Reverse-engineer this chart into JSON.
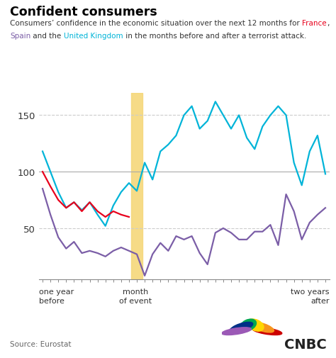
{
  "title": "Confident consumers",
  "source": "Source: Eurostat",
  "ylim": [
    5,
    170
  ],
  "yticks": [
    50,
    100,
    150
  ],
  "event_month_index": 12,
  "uk_color": "#00b4d8",
  "france_color": "#e8001c",
  "spain_color": "#7b5ea7",
  "uk_data": [
    118,
    100,
    82,
    68,
    73,
    66,
    73,
    62,
    52,
    70,
    82,
    90,
    83,
    108,
    93,
    118,
    124,
    132,
    150,
    158,
    138,
    145,
    162,
    150,
    138,
    150,
    130,
    120,
    140,
    150,
    158,
    150,
    108,
    88,
    118,
    132,
    98
  ],
  "france_data": [
    100,
    87,
    75,
    68,
    73,
    65,
    73,
    65,
    60,
    65,
    62,
    60,
    null,
    null,
    null,
    null,
    null,
    null,
    null,
    null,
    null,
    null,
    null,
    null,
    null,
    null,
    null,
    null,
    null,
    null,
    null,
    null,
    null,
    null,
    null,
    null,
    null
  ],
  "spain_data": [
    85,
    62,
    42,
    32,
    38,
    28,
    30,
    28,
    25,
    30,
    33,
    30,
    27,
    8,
    27,
    37,
    30,
    43,
    40,
    43,
    28,
    18,
    46,
    50,
    46,
    40,
    40,
    47,
    47,
    53,
    35,
    80,
    65,
    40,
    55,
    62,
    68
  ],
  "n_points": 37,
  "event_band_color": "#f5d77a",
  "grid_dashed_color": "#cccccc",
  "grid_solid_color": "#aaaaaa"
}
